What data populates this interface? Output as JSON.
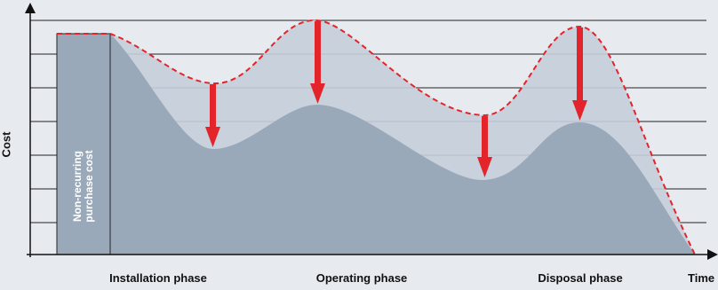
{
  "diagram": {
    "y_axis_label": "Cost",
    "x_axis_label": "Time",
    "bar_label_line1": "Non-recurring",
    "bar_label_line2": "purchase cost",
    "phases": [
      "Installation phase",
      "Operating phase",
      "Disposal phase"
    ]
  },
  "colors": {
    "background": "#e7ebf0",
    "upper_area": "#c5ced9",
    "lower_area": "#9aa9ba",
    "dashed_line": "#e3242b",
    "arrow": "#e3242b",
    "axis": "#111111"
  }
}
